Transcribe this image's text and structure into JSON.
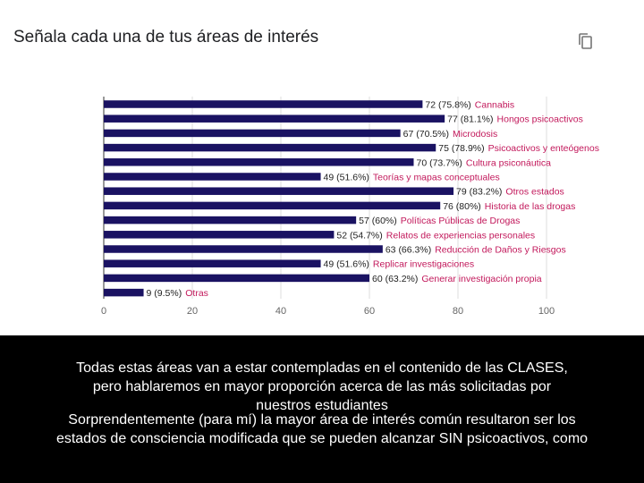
{
  "chart_title": "Señala cada una de tus áreas de interés",
  "copy_icon": "copy-icon",
  "colors": {
    "bar": "#1a1262",
    "label": "#c2185b",
    "axis_text": "#666666",
    "grid": "#dddddd",
    "caption_bg": "#000000",
    "caption_text": "#ffffff"
  },
  "chart_data": {
    "type": "bar",
    "orientation": "horizontal",
    "title": "Señala cada una de tus áreas de interés",
    "categories": [
      "Cannabis",
      "Hongos psicoactivos",
      "Microdosis",
      "Psicoactivos y enteógenos",
      "Cultura psiconáutica",
      "Teorías y mapas conceptuales",
      "Otros estados",
      "Historia de las drogas",
      "Políticas Públicas de Drogas",
      "Relatos de experiencias personales",
      "Reducción de Daños y Riesgos",
      "Replicar investigaciones",
      "Generar investigación propia",
      "Otras"
    ],
    "values": [
      72,
      77,
      67,
      75,
      70,
      49,
      79,
      76,
      57,
      52,
      63,
      49,
      60,
      9
    ],
    "value_labels": [
      "72 (75.8%)",
      "77 (81.1%)",
      "67 (70.5%)",
      "75 (78.9%)",
      "70 (73.7%)",
      "49 (51.6%)",
      "79 (83.2%)",
      "76 (80%)",
      "57 (60%)",
      "52 (54.7%)",
      "63 (66.3%)",
      "49 (51.6%)",
      "60 (63.2%)",
      "9 (9.5%)"
    ],
    "xlim": [
      0,
      100
    ],
    "xticks": [
      "0",
      "20",
      "40",
      "60",
      "80",
      "100"
    ],
    "grid": true
  },
  "caption": {
    "text1": "Todas estas áreas van a estar contempladas en el contenido de las CLASES, pero hablaremos en mayor proporción acerca de las más solicitadas por nuestros estudiantes",
    "text2": "Sorprendentemente (para mí) la mayor área de interés común resultaron ser los estados de consciencia modificada que se pueden alcanzar SIN psicoactivos, como"
  }
}
